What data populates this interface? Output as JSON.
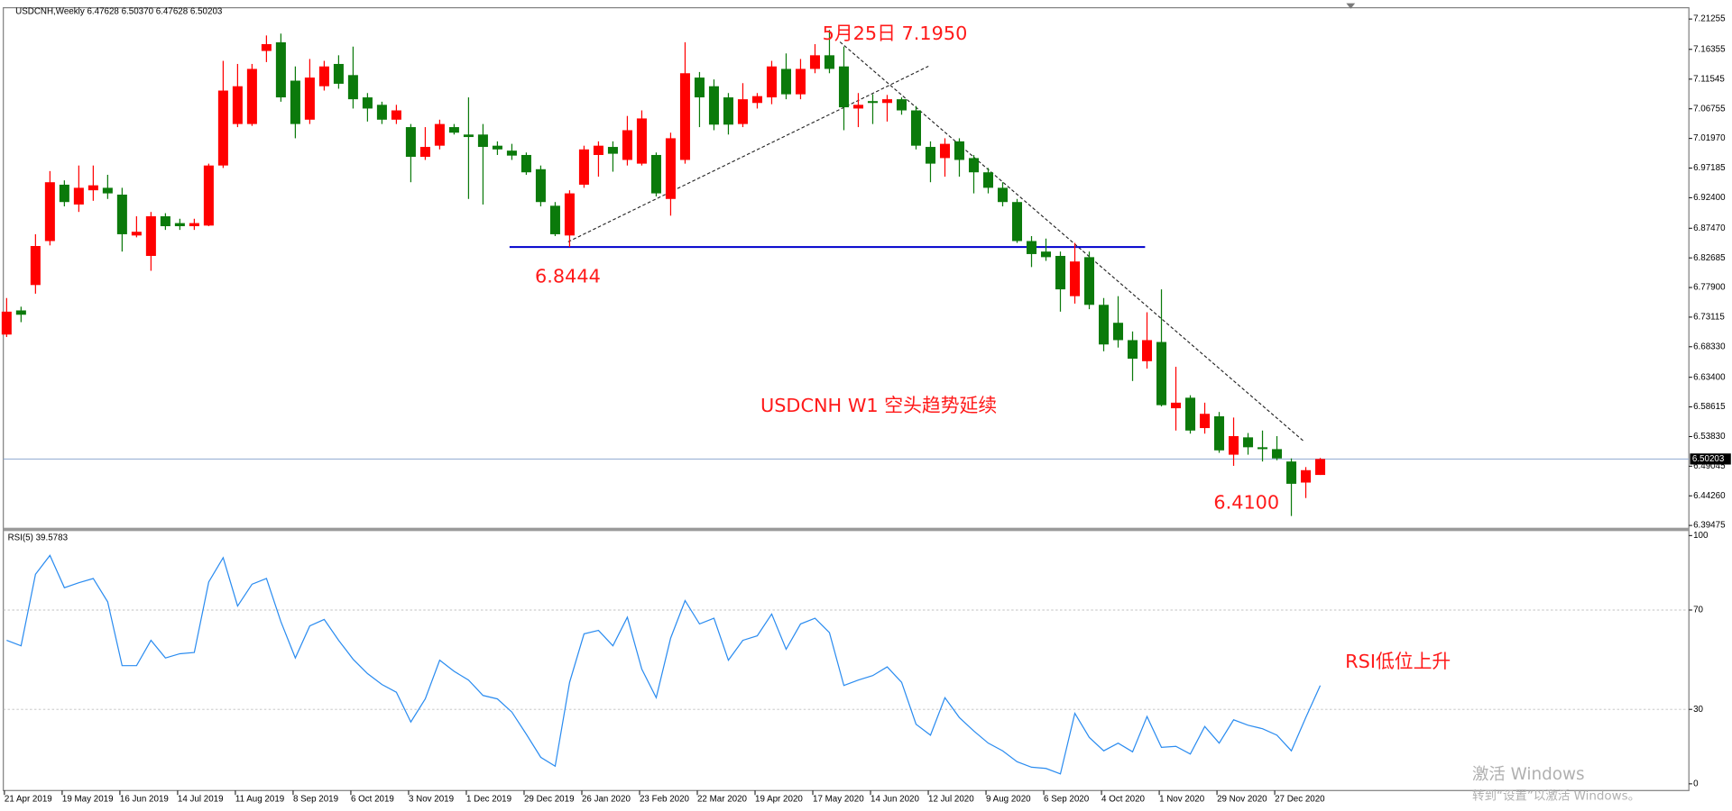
{
  "chart_data": [
    {
      "type": "candlestick",
      "title": "USDCNH,Weekly",
      "ohlc_text": [
        "6.47628",
        "6.50370",
        "6.47628",
        "6.50203"
      ],
      "up_color": "#ff0000",
      "down_color": "#0b7a0b",
      "open": [
        6.703,
        6.742,
        6.783,
        6.854,
        6.945,
        6.913,
        6.936,
        6.94,
        6.929,
        6.863,
        6.83,
        6.894,
        6.883,
        6.878,
        6.879,
        6.976,
        7.043,
        7.043,
        7.161,
        7.175,
        7.113,
        7.05,
        7.104,
        7.14,
        7.122,
        7.086,
        7.074,
        7.05,
        7.038,
        6.99,
        7.008,
        7.038,
        7.026,
        7.026,
        7.008,
        7.0,
        6.993,
        6.97,
        6.911,
        6.863,
        6.945,
        6.993,
        7.006,
        6.985,
        6.979,
        6.993,
        6.922,
        6.985,
        7.118,
        7.104,
        7.086,
        7.043,
        7.077,
        7.086,
        7.132,
        7.091,
        7.132,
        7.154,
        7.136,
        7.068,
        7.08,
        7.077,
        7.083,
        7.065,
        7.006,
        6.988,
        7.015,
        6.988,
        6.965,
        6.94,
        6.917,
        6.854,
        6.837,
        6.83,
        6.765,
        6.828,
        6.751,
        6.722,
        6.694,
        6.66,
        6.691,
        6.584,
        6.601,
        6.552,
        6.571,
        6.509,
        6.537,
        6.521,
        6.518,
        6.498,
        6.464,
        6.47628
      ],
      "high": [
        6.762,
        6.748,
        6.865,
        6.967,
        6.952,
        6.976,
        6.976,
        6.961,
        6.94,
        6.894,
        6.901,
        6.899,
        6.89,
        6.89,
        6.979,
        7.145,
        7.14,
        7.14,
        7.186,
        7.189,
        7.136,
        7.148,
        7.145,
        7.154,
        7.168,
        7.093,
        7.079,
        7.074,
        7.043,
        7.038,
        7.05,
        7.043,
        7.086,
        7.043,
        7.015,
        7.011,
        6.997,
        6.976,
        6.917,
        6.936,
        7.008,
        7.015,
        7.015,
        7.056,
        7.065,
        6.997,
        7.029,
        7.175,
        7.127,
        7.115,
        7.093,
        7.109,
        7.093,
        7.145,
        7.157,
        7.148,
        7.172,
        7.195,
        7.168,
        7.093,
        7.091,
        7.09,
        7.086,
        7.072,
        7.015,
        7.02,
        7.02,
        6.993,
        6.972,
        6.949,
        6.922,
        6.862,
        6.858,
        6.837,
        6.851,
        6.837,
        6.762,
        6.765,
        6.708,
        6.739,
        6.776,
        6.651,
        6.605,
        6.593,
        6.578,
        6.569,
        6.544,
        6.548,
        6.539,
        6.503,
        6.489,
        6.5037
      ],
      "low": [
        6.699,
        6.723,
        6.769,
        6.847,
        6.91,
        6.901,
        6.919,
        6.922,
        6.837,
        6.86,
        6.806,
        6.872,
        6.872,
        6.872,
        6.878,
        6.972,
        7.038,
        7.04,
        7.143,
        7.079,
        7.02,
        7.043,
        7.097,
        7.1,
        7.068,
        7.047,
        7.043,
        7.043,
        6.949,
        6.985,
        7.002,
        7.026,
        6.922,
        6.913,
        6.993,
        6.985,
        6.961,
        6.91,
        6.862,
        6.8444,
        6.94,
        6.958,
        6.966,
        6.976,
        6.976,
        6.926,
        6.895,
        6.979,
        7.038,
        7.033,
        7.026,
        7.038,
        7.068,
        7.075,
        7.083,
        7.083,
        7.125,
        7.125,
        7.033,
        7.038,
        7.043,
        7.047,
        7.058,
        7.002,
        6.949,
        6.958,
        6.958,
        6.931,
        6.931,
        6.91,
        6.851,
        6.812,
        6.822,
        6.74,
        6.753,
        6.744,
        6.676,
        6.682,
        6.628,
        6.648,
        6.587,
        6.548,
        6.543,
        6.543,
        6.512,
        6.491,
        6.509,
        6.498,
        6.5,
        6.41,
        6.439,
        6.47628
      ],
      "close": [
        6.74,
        6.735,
        6.846,
        6.949,
        6.917,
        6.94,
        6.944,
        6.931,
        6.865,
        6.869,
        6.894,
        6.878,
        6.878,
        6.883,
        6.976,
        7.097,
        7.104,
        7.132,
        7.172,
        7.086,
        7.043,
        7.118,
        7.136,
        7.108,
        7.083,
        7.068,
        7.05,
        7.065,
        6.99,
        7.006,
        7.043,
        7.029,
        7.022,
        7.006,
        7.002,
        6.992,
        6.965,
        6.917,
        6.865,
        6.931,
        7.002,
        7.008,
        6.995,
        7.033,
        7.052,
        6.931,
        7.02,
        7.125,
        7.086,
        7.042,
        7.042,
        7.083,
        7.088,
        7.136,
        7.091,
        7.132,
        7.154,
        7.132,
        7.07,
        7.074,
        7.077,
        7.083,
        7.065,
        7.008,
        6.979,
        7.011,
        6.985,
        6.965,
        6.94,
        6.917,
        6.854,
        6.833,
        6.828,
        6.776,
        6.821,
        6.751,
        6.687,
        6.694,
        6.664,
        6.694,
        6.589,
        6.593,
        6.548,
        6.575,
        6.516,
        6.539,
        6.521,
        6.518,
        6.503,
        6.462,
        6.484,
        6.50203
      ],
      "support_level": 6.8444,
      "current_price": 6.50203,
      "ylim": [
        6.391,
        7.229
      ],
      "yticks": [
        7.21255,
        7.16355,
        7.11545,
        7.06755,
        {
          "value": 7.0197,
          "label": "7.01970"
        },
        6.97185,
        {
          "value": 6.924,
          "label": "6.92400"
        },
        {
          "value": 6.8747,
          "label": "6.87470"
        },
        6.82685,
        {
          "value": 6.779,
          "label": "6.77900"
        },
        6.73115,
        {
          "value": 6.6833,
          "label": "6.68330"
        },
        {
          "value": 6.634,
          "label": "6.63400"
        },
        6.58615,
        {
          "value": 6.5383,
          "label": "6.53830"
        },
        6.49045,
        {
          "value": 6.4426,
          "label": "6.44260"
        },
        6.39475
      ],
      "annotations": [
        "5月25日  7.1950",
        "USDCNH  W1  空头趋势延续",
        "6.4100"
      ]
    },
    {
      "type": "line",
      "categories": [
        "21 Apr 2019",
        null,
        null,
        null,
        "19 May 2019",
        null,
        null,
        null,
        "16 Jun 2019",
        null,
        null,
        null,
        "14 Jul 2019",
        null,
        null,
        null,
        "11 Aug 2019",
        null,
        null,
        null,
        "8 Sep 2019",
        null,
        null,
        null,
        "6 Oct 2019",
        null,
        null,
        null,
        "3 Nov 2019",
        null,
        null,
        null,
        "1 Dec 2019",
        null,
        null,
        null,
        "29 Dec 2019",
        null,
        null,
        null,
        "26 Jan 2020",
        null,
        null,
        null,
        "23 Feb 2020",
        null,
        null,
        null,
        "22 Mar 2020",
        null,
        null,
        null,
        "19 Apr 2020",
        null,
        null,
        null,
        "17 May 2020",
        null,
        null,
        null,
        "14 Jun 2020",
        null,
        null,
        null,
        "12 Jul 2020",
        null,
        null,
        null,
        "9 Aug 2020",
        null,
        null,
        null,
        "6 Sep 2020",
        null,
        null,
        null,
        "4 Oct 2020",
        null,
        null,
        null,
        "1 Nov 2020",
        null,
        null,
        null,
        "29 Nov 2020",
        null,
        null,
        null,
        "27 Dec 2020",
        null,
        null,
        null
      ],
      "series": [
        {
          "name": "RSI(5)",
          "color": "#2b8cf0",
          "values": [
            57.8,
            55.6,
            84.4,
            92,
            79,
            81,
            82.7,
            73.3,
            47.6,
            47.6,
            57.8,
            50.7,
            52.4,
            52.9,
            81.3,
            91.1,
            71.6,
            80.4,
            82.7,
            65.3,
            50.7,
            63.6,
            66.2,
            57.8,
            50.2,
            44.4,
            40,
            36.9,
            24.9,
            34.2,
            49.8,
            45.3,
            41.8,
            35.6,
            34.2,
            28.9,
            20,
            10.7,
            7.1,
            40.9,
            60.4,
            61.8,
            55.6,
            67.1,
            46.2,
            34.7,
            58.7,
            73.8,
            64.4,
            66.7,
            49.8,
            57.8,
            59.6,
            68.4,
            54.2,
            64.4,
            66.7,
            60.9,
            39.6,
            41.8,
            43.6,
            47.1,
            40.9,
            24,
            19.6,
            34.7,
            26.7,
            21.3,
            16.4,
            13.3,
            8.9,
            6.7,
            6.2,
            4,
            28.4,
            18.7,
            13.3,
            16.4,
            12.9,
            27.1,
            14.7,
            15.1,
            12,
            23.1,
            16.4,
            25.8,
            23.6,
            22.2,
            19.6,
            13.3,
            26.7,
            39.5783
          ]
        }
      ],
      "ylim": [
        -2.7,
        101.8
      ],
      "yticks": [
        0,
        30,
        70,
        100
      ],
      "levels": [
        30,
        70
      ],
      "annotations": [
        "RSI低位上升"
      ]
    }
  ],
  "watermark": {
    "title": "激活 Windows",
    "text": "转到“设置”以激活 Windows。"
  }
}
